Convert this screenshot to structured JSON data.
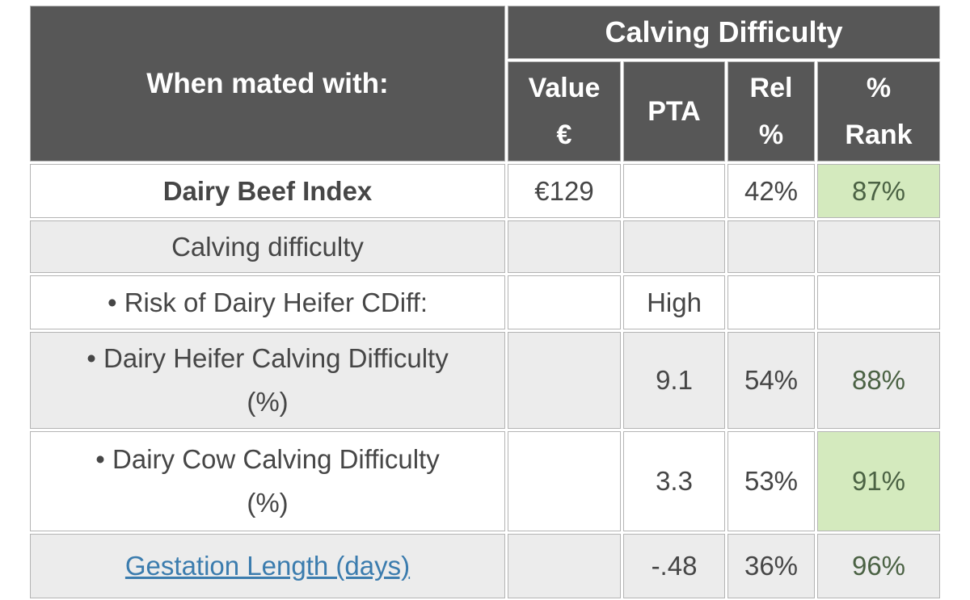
{
  "table": {
    "header": {
      "when_mated": "When mated with:",
      "group": "Calving Difficulty",
      "cols": [
        {
          "line1": "Value",
          "line2": "€"
        },
        {
          "line1": "PTA",
          "line2": ""
        },
        {
          "line1": "Rel",
          "line2": "%"
        },
        {
          "line1": "%",
          "line2": "Rank"
        }
      ]
    },
    "rows": [
      {
        "label": "Dairy Beef Index",
        "label2": "",
        "value": "€129",
        "pta": "",
        "rel": "42%",
        "rank": "87%"
      },
      {
        "label": "Calving difficulty",
        "label2": "",
        "value": "",
        "pta": "",
        "rel": "",
        "rank": ""
      },
      {
        "label": "• Risk of Dairy Heifer CDiff:",
        "label2": "",
        "value": "",
        "pta": "High",
        "rel": "",
        "rank": ""
      },
      {
        "label": "• Dairy Heifer Calving Difficulty",
        "label2": "(%)",
        "value": "",
        "pta": "9.1",
        "rel": "54%",
        "rank": "88%"
      },
      {
        "label": "• Dairy Cow Calving Difficulty",
        "label2": "(%)",
        "value": "",
        "pta": "3.3",
        "rel": "53%",
        "rank": "91%"
      },
      {
        "label": "Gestation Length (days)",
        "label2": "",
        "value": "",
        "pta": "-.48",
        "rel": "36%",
        "rank": "96%"
      }
    ]
  },
  "colors": {
    "header_bg": "#575757",
    "header_text": "#ffffff",
    "body_text": "#464646",
    "alt_row": "#ececec",
    "green_bg": "#d4eabe",
    "green_text": "#4b6244",
    "link": "#3b7cae",
    "grid": "#b4b4b4"
  }
}
